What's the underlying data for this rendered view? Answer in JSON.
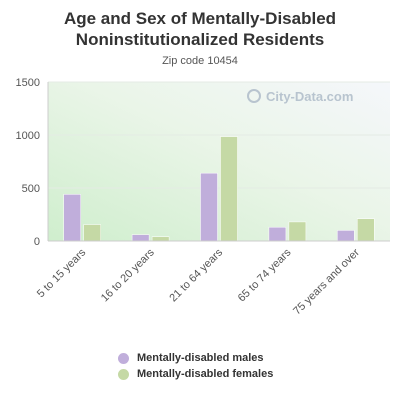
{
  "chart_data": {
    "type": "bar",
    "title": "Age and Sex of Mentally-Disabled Noninstitutionalized Residents",
    "subtitle": "Zip code 10454",
    "categories": [
      "5 to 15 years",
      "16 to 20 years",
      "21 to 64 years",
      "65 to 74 years",
      "75 years and over"
    ],
    "series": [
      {
        "name": "Mentally-disabled males",
        "color": "#c0aedb",
        "values": [
          440,
          60,
          640,
          130,
          100
        ]
      },
      {
        "name": "Mentally-disabled females",
        "color": "#c5d9a5",
        "values": [
          155,
          40,
          985,
          180,
          210
        ]
      }
    ],
    "yticks": [
      0,
      500,
      1000,
      1500
    ],
    "ylim": [
      0,
      1500
    ],
    "grid": true,
    "legend_position": "bottom",
    "watermark": "City-Data.com"
  }
}
